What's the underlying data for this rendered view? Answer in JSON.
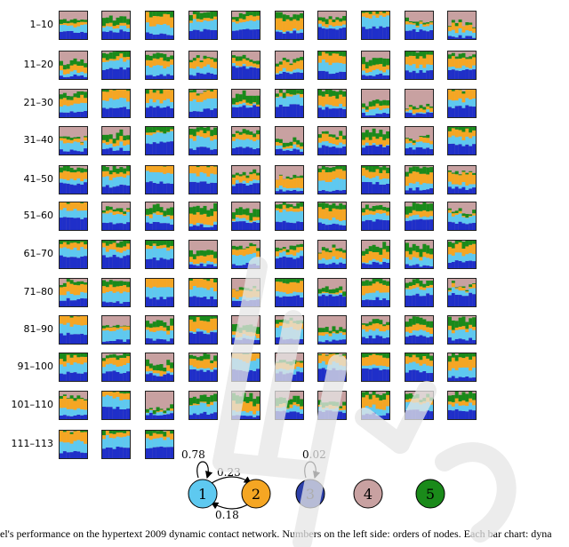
{
  "row_labels": [
    "1–10",
    "11–20",
    "21–30",
    "31–40",
    "41–50",
    "51–60",
    "61–70",
    "71–80",
    "81–90",
    "91–100",
    "101–110",
    "111–113"
  ],
  "row_counts": [
    10,
    10,
    10,
    10,
    10,
    10,
    10,
    10,
    10,
    10,
    10,
    3
  ],
  "colors": {
    "state1": "#5ec9f0",
    "state2": "#f5a623",
    "state3": "#1f2fc9",
    "state4": "#c8a1a1",
    "state5": "#1a8a1a",
    "cell_border": "#222222",
    "watermark": "#e6e6e6"
  },
  "diagram": {
    "nodes": [
      {
        "label": "1",
        "color": "#5ec9f0"
      },
      {
        "label": "2",
        "color": "#f5a623"
      },
      {
        "label": "3",
        "color": "#2c3fa8"
      },
      {
        "label": "4",
        "color": "#c8a1a1"
      },
      {
        "label": "5",
        "color": "#1a8a1a"
      }
    ],
    "edges": {
      "self_loop_1": "0.78",
      "edge_1_to_2": "0.23",
      "edge_2_to_1": "0.18",
      "self_loop_3": "0.02"
    }
  },
  "caption": "el's performance on the hypertext 2009 dynamic contact network. Numbers on the left side: orders of nodes. Each bar chart: dyna"
}
